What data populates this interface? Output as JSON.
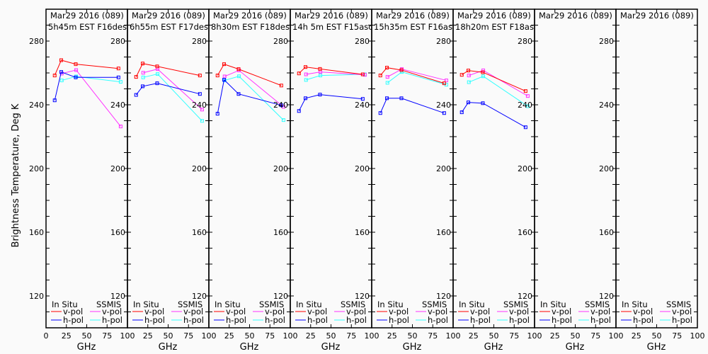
{
  "chart_data": {
    "type": "line",
    "ylabel": "Brightness Temperature, Deg K",
    "xlabel": "GHz",
    "ylim": [
      100,
      300
    ],
    "xlim": [
      0,
      100
    ],
    "yticks": [
      120,
      160,
      200,
      240,
      280
    ],
    "xticks": [
      0,
      25,
      50,
      75,
      100
    ],
    "grid": false,
    "legend": {
      "insitu_title": "In Situ",
      "ssmis_title": "SSMIS",
      "vpol": "v-pol",
      "hpol": "h-pol"
    },
    "colors": {
      "insitu_v": "#ff0000",
      "insitu_h": "#0000ff",
      "ssmis_v": "#ff33ff",
      "ssmis_h": "#33ffff"
    },
    "insitu_freqs": [
      10.65,
      18.7,
      36.5,
      89
    ],
    "ssmis_freqs": [
      19.35,
      37,
      91.66
    ],
    "panels": [
      {
        "title": "Mar29 2016 (089)",
        "subtitle": "5h45m EST F16des",
        "insitu_v": [
          258.4,
          268.0,
          265.5,
          262.8
        ],
        "insitu_h": [
          242.8,
          260.6,
          257.2,
          257.2
        ],
        "ssmis_v": [
          259.6,
          261.8,
          226.4
        ],
        "ssmis_h": [
          255.3,
          257.8,
          254.4
        ]
      },
      {
        "title": "Mar29 2016 (089)",
        "subtitle": "6h55m EST F17des",
        "insitu_v": [
          257.5,
          265.9,
          264.1,
          258.4
        ],
        "insitu_h": [
          246.2,
          251.6,
          253.5,
          246.8
        ],
        "ssmis_v": [
          260.1,
          262.4,
          237.0
        ],
        "ssmis_h": [
          257.2,
          259.3,
          229.9
        ]
      },
      {
        "title": "Mar29 2016 (089)",
        "subtitle": "8h30m EST F18des",
        "insitu_v": [
          258.4,
          265.5,
          262.4,
          252.1
        ],
        "insitu_h": [
          234.4,
          255.7,
          246.8,
          239.7
        ],
        "ssmis_v": [
          257.8,
          261.6,
          238.7
        ],
        "ssmis_h": [
          255.3,
          257.9,
          230.4
        ]
      },
      {
        "title": "Mar29 2016 (089)",
        "subtitle": "14h 5m EST F15asc",
        "insitu_v": [
          259.7,
          263.7,
          262.5,
          259.1
        ],
        "insitu_h": [
          236.1,
          244.1,
          246.4,
          243.7
        ],
        "ssmis_v": [
          259.1,
          260.6,
          258.8
        ],
        "ssmis_h": [
          255.6,
          258.4,
          259.1
        ]
      },
      {
        "title": "Mar29 2016 (089)",
        "subtitle": "15h35m EST F16asc",
        "insitu_v": [
          258.4,
          263.3,
          261.8,
          253.5
        ],
        "insitu_h": [
          234.8,
          244.1,
          244.1,
          234.8
        ],
        "ssmis_v": [
          257.5,
          262.4,
          255.3
        ],
        "ssmis_h": [
          253.8,
          260.6,
          252.6
        ]
      },
      {
        "title": "Mar29 2016 (089)",
        "subtitle": "18h20m EST F18asc",
        "insitu_v": [
          258.8,
          261.5,
          260.4,
          248.6
        ],
        "insitu_h": [
          235.3,
          241.5,
          241.0,
          225.9
        ],
        "ssmis_v": [
          258.4,
          261.6,
          245.5
        ],
        "ssmis_h": [
          254.2,
          257.9,
          239.1
        ]
      },
      {
        "title": "Mar29 2016 (089)",
        "subtitle": "",
        "insitu_v": [],
        "insitu_h": [],
        "ssmis_v": [],
        "ssmis_h": []
      },
      {
        "title": "Mar29 2016 (089)",
        "subtitle": "",
        "insitu_v": [],
        "insitu_h": [],
        "ssmis_v": [],
        "ssmis_h": []
      }
    ]
  }
}
